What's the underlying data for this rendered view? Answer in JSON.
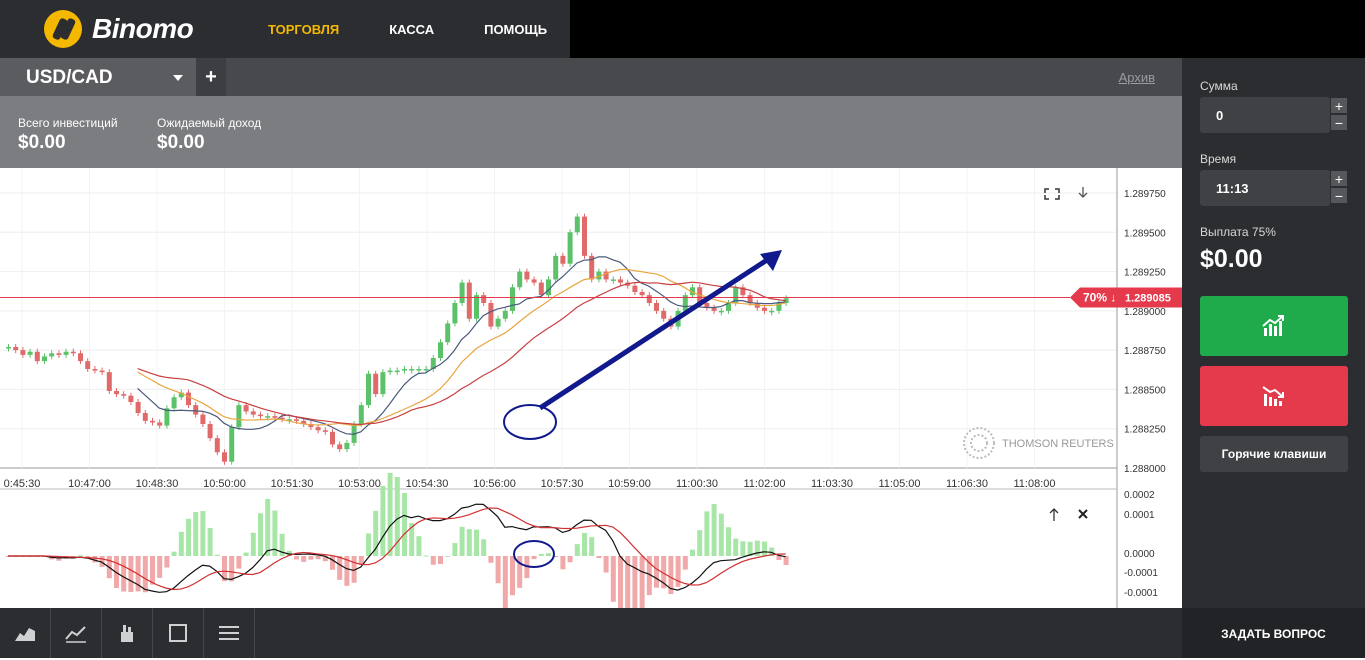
{
  "app": {
    "name": "Binomo"
  },
  "nav": {
    "items": [
      {
        "label": "ТОРГОВЛЯ",
        "active": true
      },
      {
        "label": "КАССА",
        "active": false
      },
      {
        "label": "ПОМОЩЬ",
        "active": false
      }
    ]
  },
  "tabs": {
    "pair": "USD/CAD",
    "add": "+",
    "archive": "Архив"
  },
  "info": {
    "total_label": "Всего инвестиций",
    "total_value": "$0.00",
    "expected_label": "Ожидаемый доход",
    "expected_value": "$0.00"
  },
  "sidebar": {
    "amount_label": "Сумма",
    "amount_value": "0",
    "time_label": "Время",
    "time_value": "11:13",
    "payout_label": "Выплата 75%",
    "payout_value": "$0.00",
    "hotkeys_label": "Горячие клавиши",
    "plus": "+",
    "minus": "−"
  },
  "ask_button": "ЗАДАТЬ ВОПРОС",
  "colors": {
    "accent": "#f5b800",
    "up": "#1fab4b",
    "down": "#e5394c",
    "price_line": "#e5394c"
  },
  "chart_data": {
    "type": "candlestick",
    "price_axis": [
      "1.289750",
      "1.289500",
      "1.289250",
      "1.289000",
      "1.288750",
      "1.288500",
      "1.288250",
      "1.288000"
    ],
    "ylim": [
      1.288,
      1.28975
    ],
    "time_axis": [
      "0:45:30",
      "10:47:00",
      "10:48:30",
      "10:50:00",
      "10:51:30",
      "10:53:00",
      "10:54:30",
      "10:56:00",
      "10:57:30",
      "10:59:00",
      "11:00:30",
      "11:02:00",
      "11:03:30",
      "11:05:00",
      "11:06:30",
      "11:08:00"
    ],
    "current_price": "1.289085",
    "current_percent": "70% ↓",
    "watermark": "THOMSON REUTERS",
    "candles": [
      1.28877,
      1.28875,
      1.28872,
      1.28874,
      1.28868,
      1.28871,
      1.28873,
      1.28872,
      1.28874,
      1.28873,
      1.28868,
      1.28863,
      1.28862,
      1.28861,
      1.28849,
      1.28847,
      1.28846,
      1.28842,
      1.28835,
      1.2883,
      1.28829,
      1.28827,
      1.28838,
      1.28845,
      1.28848,
      1.2884,
      1.28834,
      1.28828,
      1.28819,
      1.2881,
      1.28804,
      1.28826,
      1.2884,
      1.28836,
      1.28834,
      1.28833,
      1.28833,
      1.28832,
      1.28831,
      1.28831,
      1.2883,
      1.28828,
      1.28826,
      1.28824,
      1.28823,
      1.28815,
      1.28812,
      1.28816,
      1.28828,
      1.2884,
      1.2886,
      1.28847,
      1.28861,
      1.28862,
      1.28862,
      1.28863,
      1.28863,
      1.28863,
      1.28863,
      1.2887,
      1.2888,
      1.28892,
      1.28905,
      1.28918,
      1.28895,
      1.2891,
      1.28905,
      1.2889,
      1.28895,
      1.289,
      1.28915,
      1.28925,
      1.2892,
      1.28918,
      1.2891,
      1.2892,
      1.28935,
      1.2893,
      1.2895,
      1.2896,
      1.28935,
      1.2892,
      1.28925,
      1.2892,
      1.2892,
      1.28918,
      1.28916,
      1.28912,
      1.2891,
      1.28905,
      1.289,
      1.28895,
      1.2889,
      1.289,
      1.2891,
      1.28915,
      1.28905,
      1.28902,
      1.289,
      1.289,
      1.28905,
      1.28915,
      1.2891,
      1.28905,
      1.28902,
      1.289,
      1.289,
      1.28905,
      1.28908
    ],
    "oscillator_axis": [
      "0.0002",
      "0.0001",
      "0.0000",
      "-0.0001",
      "-0.0001"
    ]
  }
}
